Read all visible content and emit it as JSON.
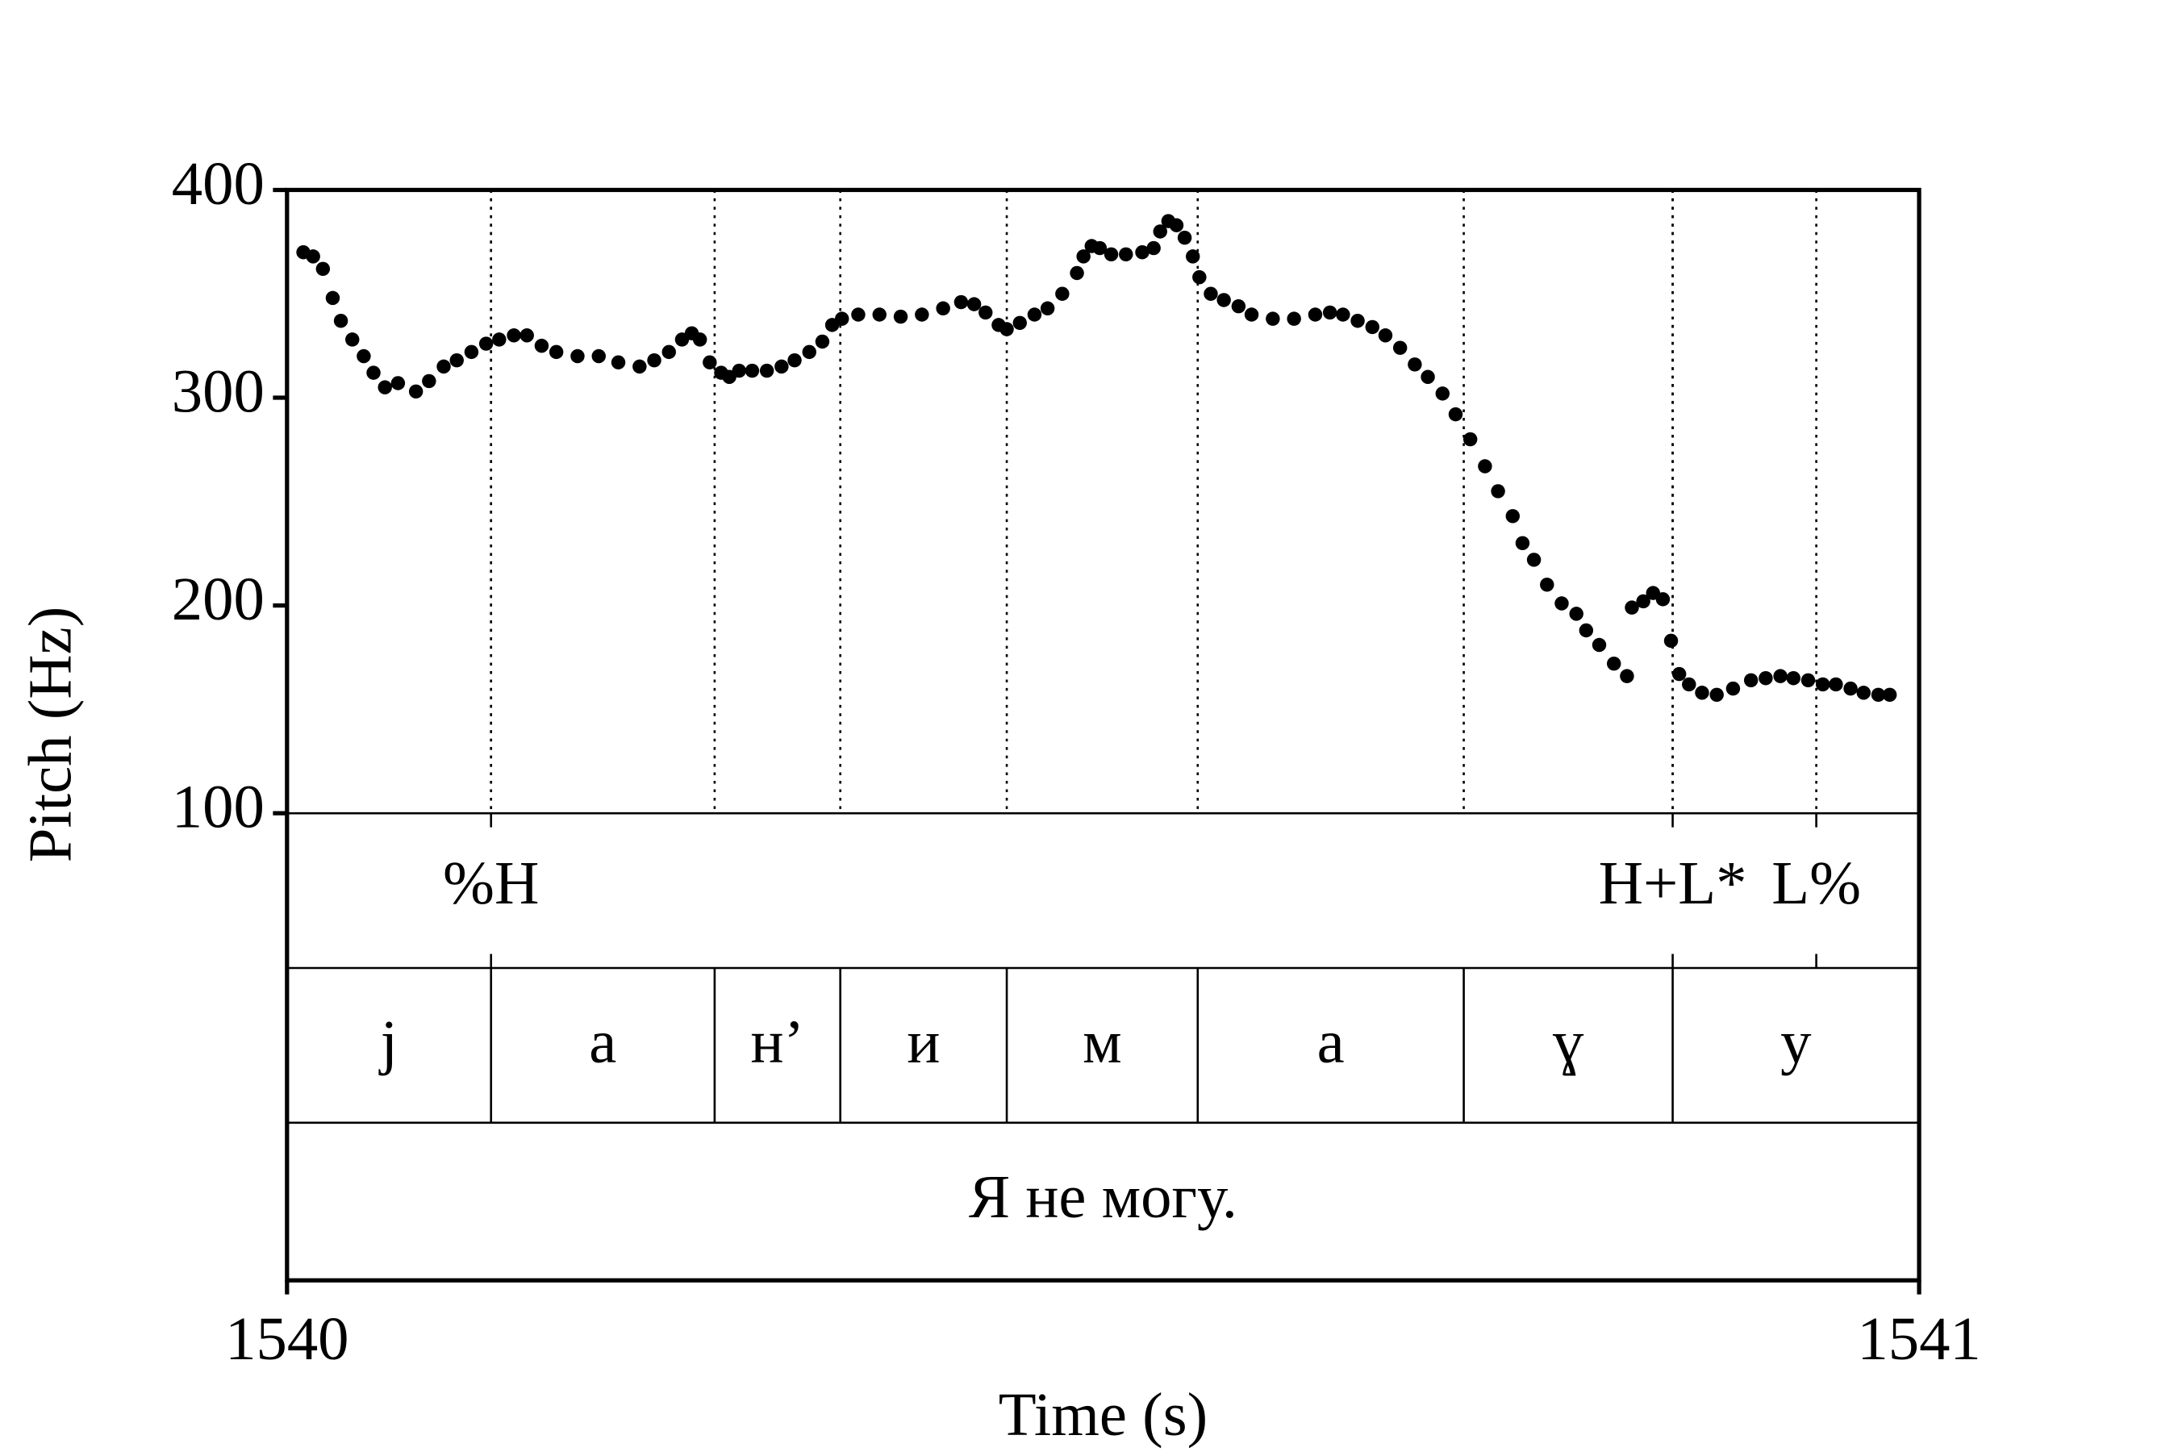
{
  "chart_data": {
    "type": "scatter",
    "x_label": "Time (s)",
    "y_label": "Pitch (Hz)",
    "xlim": [
      1540,
      1541
    ],
    "xticks": [
      1540,
      1541
    ],
    "ylim": [
      100,
      400
    ],
    "yticks": [
      100,
      200,
      300,
      400
    ],
    "color": "#000000",
    "x": [
      1540.01,
      1540.016,
      1540.022,
      1540.028,
      1540.033,
      1540.04,
      1540.047,
      1540.053,
      1540.06,
      1540.068,
      1540.079,
      1540.087,
      1540.096,
      1540.104,
      1540.113,
      1540.122,
      1540.13,
      1540.139,
      1540.147,
      1540.156,
      1540.165,
      1540.178,
      1540.191,
      1540.203,
      1540.216,
      1540.225,
      1540.234,
      1540.242,
      1540.248,
      1540.253,
      1540.259,
      1540.266,
      1540.271,
      1540.277,
      1540.285,
      1540.294,
      1540.303,
      1540.311,
      1540.32,
      1540.328,
      1540.334,
      1540.34,
      1540.35,
      1540.363,
      1540.376,
      1540.389,
      1540.402,
      1540.413,
      1540.421,
      1540.428,
      1540.436,
      1540.441,
      1540.449,
      1540.458,
      1540.466,
      1540.475,
      1540.484,
      1540.488,
      1540.493,
      1540.498,
      1540.505,
      1540.514,
      1540.524,
      1540.531,
      1540.535,
      1540.54,
      1540.545,
      1540.55,
      1540.555,
      1540.559,
      1540.566,
      1540.574,
      1540.583,
      1540.591,
      1540.604,
      1540.617,
      1540.63,
      1540.639,
      1540.647,
      1540.656,
      1540.665,
      1540.673,
      1540.682,
      1540.691,
      1540.699,
      1540.708,
      1540.716,
      1540.725,
      1540.734,
      1540.742,
      1540.751,
      1540.757,
      1540.764,
      1540.772,
      1540.781,
      1540.79,
      1540.796,
      1540.804,
      1540.813,
      1540.821,
      1540.824,
      1540.831,
      1540.837,
      1540.843,
      1540.848,
      1540.853,
      1540.859,
      1540.867,
      1540.876,
      1540.886,
      1540.897,
      1540.906,
      1540.915,
      1540.923,
      1540.932,
      1540.941,
      1540.949,
      1540.958,
      1540.966,
      1540.975,
      1540.982
    ],
    "values": [
      370,
      368,
      362,
      348,
      337,
      328,
      320,
      312,
      305,
      307,
      303,
      308,
      315,
      318,
      322,
      326,
      328,
      330,
      330,
      325,
      322,
      320,
      320,
      317,
      315,
      318,
      322,
      328,
      331,
      328,
      317,
      312,
      310,
      313,
      313,
      313,
      315,
      318,
      322,
      327,
      335,
      338,
      340,
      340,
      339,
      340,
      343,
      346,
      345,
      341,
      335,
      333,
      336,
      340,
      343,
      350,
      360,
      368,
      373,
      372,
      369,
      369,
      370,
      372,
      380,
      385,
      383,
      377,
      368,
      358,
      350,
      347,
      344,
      340,
      338,
      338,
      340,
      341,
      340,
      337,
      334,
      330,
      324,
      316,
      310,
      302,
      292,
      280,
      267,
      255,
      243,
      230,
      222,
      210,
      201,
      196,
      188,
      181,
      172,
      166,
      199,
      202,
      206,
      203,
      183,
      167,
      162,
      158,
      157,
      160,
      164,
      165,
      166,
      165,
      164,
      162,
      162,
      160,
      158,
      157,
      157
    ],
    "tone_tier": {
      "times": [
        1540.125,
        1540.849,
        1540.937
      ],
      "labels": [
        "%H",
        "H+L*",
        "L%"
      ]
    },
    "segment_tier": {
      "boundaries": [
        1540,
        1540.125,
        1540.262,
        1540.339,
        1540.441,
        1540.558,
        1540.721,
        1540.849,
        1541
      ],
      "labels": [
        "j",
        "a",
        "н’",
        "и",
        "м",
        "a",
        "ɣ",
        "y"
      ]
    },
    "word_tier": {
      "boundaries": [
        1540,
        1541
      ],
      "labels": [
        "Я не могу."
      ]
    }
  }
}
